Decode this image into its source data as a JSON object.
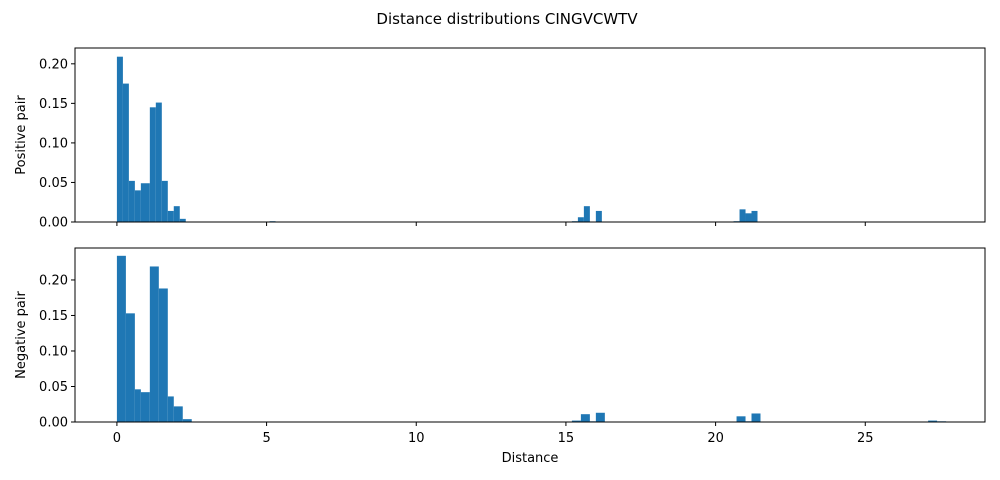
{
  "chart_data": {
    "type": "bar",
    "title": "Distance distributions CINGVCWTV",
    "bar_color": "#1f77b4",
    "shared_x": true,
    "xlabel": "Distance",
    "xlim": [
      -1.4,
      29.0
    ],
    "xticks": [
      0,
      5,
      10,
      15,
      20,
      25
    ],
    "xtick_labels": [
      "0",
      "5",
      "10",
      "15",
      "20",
      "25"
    ],
    "panels": [
      {
        "id": "positive",
        "ylabel": "Positive pair",
        "ylim": [
          0,
          0.22
        ],
        "yticks": [
          0.0,
          0.05,
          0.1,
          0.15,
          0.2
        ],
        "ytick_labels": [
          "0.00",
          "0.05",
          "0.10",
          "0.15",
          "0.20"
        ],
        "show_x_tick_labels": false,
        "bins": [
          {
            "x0": 0.0,
            "x1": 0.2,
            "value": 0.209
          },
          {
            "x0": 0.2,
            "x1": 0.4,
            "value": 0.175
          },
          {
            "x0": 0.4,
            "x1": 0.6,
            "value": 0.052
          },
          {
            "x0": 0.6,
            "x1": 0.8,
            "value": 0.04
          },
          {
            "x0": 0.8,
            "x1": 1.1,
            "value": 0.049
          },
          {
            "x0": 1.1,
            "x1": 1.3,
            "value": 0.145
          },
          {
            "x0": 1.3,
            "x1": 1.5,
            "value": 0.151
          },
          {
            "x0": 1.5,
            "x1": 1.7,
            "value": 0.052
          },
          {
            "x0": 1.7,
            "x1": 1.9,
            "value": 0.014
          },
          {
            "x0": 1.9,
            "x1": 2.1,
            "value": 0.02
          },
          {
            "x0": 2.1,
            "x1": 2.3,
            "value": 0.004
          },
          {
            "x0": 5.1,
            "x1": 5.3,
            "value": 0.001
          },
          {
            "x0": 15.2,
            "x1": 15.4,
            "value": 0.001
          },
          {
            "x0": 15.4,
            "x1": 15.6,
            "value": 0.006
          },
          {
            "x0": 15.6,
            "x1": 15.8,
            "value": 0.02
          },
          {
            "x0": 16.0,
            "x1": 16.2,
            "value": 0.014
          },
          {
            "x0": 20.6,
            "x1": 20.8,
            "value": 0.001
          },
          {
            "x0": 20.8,
            "x1": 21.0,
            "value": 0.016
          },
          {
            "x0": 21.0,
            "x1": 21.2,
            "value": 0.011
          },
          {
            "x0": 21.2,
            "x1": 21.4,
            "value": 0.014
          }
        ]
      },
      {
        "id": "negative",
        "ylabel": "Negative pair",
        "ylim": [
          0,
          0.245
        ],
        "yticks": [
          0.0,
          0.05,
          0.1,
          0.15,
          0.2
        ],
        "ytick_labels": [
          "0.00",
          "0.05",
          "0.10",
          "0.15",
          "0.20"
        ],
        "show_x_tick_labels": true,
        "bins": [
          {
            "x0": 0.0,
            "x1": 0.3,
            "value": 0.234
          },
          {
            "x0": 0.3,
            "x1": 0.6,
            "value": 0.153
          },
          {
            "x0": 0.6,
            "x1": 0.8,
            "value": 0.046
          },
          {
            "x0": 0.8,
            "x1": 1.1,
            "value": 0.042
          },
          {
            "x0": 1.1,
            "x1": 1.4,
            "value": 0.219
          },
          {
            "x0": 1.4,
            "x1": 1.7,
            "value": 0.188
          },
          {
            "x0": 1.7,
            "x1": 1.9,
            "value": 0.036
          },
          {
            "x0": 1.9,
            "x1": 2.2,
            "value": 0.022
          },
          {
            "x0": 2.2,
            "x1": 2.5,
            "value": 0.004
          },
          {
            "x0": 15.2,
            "x1": 15.5,
            "value": 0.002
          },
          {
            "x0": 15.5,
            "x1": 15.8,
            "value": 0.011
          },
          {
            "x0": 15.8,
            "x1": 16.0,
            "value": 0.001
          },
          {
            "x0": 16.0,
            "x1": 16.3,
            "value": 0.013
          },
          {
            "x0": 20.7,
            "x1": 21.0,
            "value": 0.008
          },
          {
            "x0": 21.0,
            "x1": 21.2,
            "value": 0.001
          },
          {
            "x0": 21.2,
            "x1": 21.5,
            "value": 0.012
          },
          {
            "x0": 27.1,
            "x1": 27.4,
            "value": 0.002
          },
          {
            "x0": 27.4,
            "x1": 27.7,
            "value": 0.001
          }
        ]
      }
    ]
  }
}
